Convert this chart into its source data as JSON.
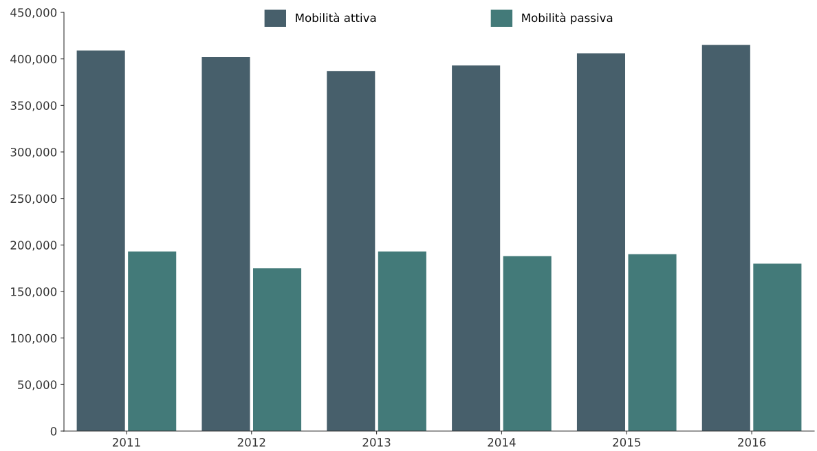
{
  "chart_data": {
    "type": "bar",
    "categories": [
      "2011",
      "2012",
      "2013",
      "2014",
      "2015",
      "2016"
    ],
    "series": [
      {
        "name": "Mobilità attiva",
        "color": "#475f6b",
        "values": [
          409000,
          402000,
          387000,
          393000,
          406000,
          415000
        ]
      },
      {
        "name": "Mobilità passiva",
        "color": "#437a79",
        "values": [
          193000,
          175000,
          193000,
          188000,
          190000,
          180000
        ]
      }
    ],
    "ylim": [
      0,
      450000
    ],
    "yticks": [
      0,
      {
        "value": 50000,
        "label": "50,000"
      },
      {
        "value": 100000,
        "label": "100,000"
      },
      {
        "value": 150000,
        "label": "150,000"
      },
      {
        "value": 200000,
        "label": "200,000"
      },
      {
        "value": 250000,
        "label": "250,000"
      },
      {
        "value": 300000,
        "label": "300,000"
      },
      {
        "value": 350000,
        "label": "350,000"
      },
      {
        "value": 400000,
        "label": "400,000"
      },
      {
        "value": 450000,
        "label": "450,000"
      }
    ],
    "grid": false,
    "legend": "top"
  }
}
